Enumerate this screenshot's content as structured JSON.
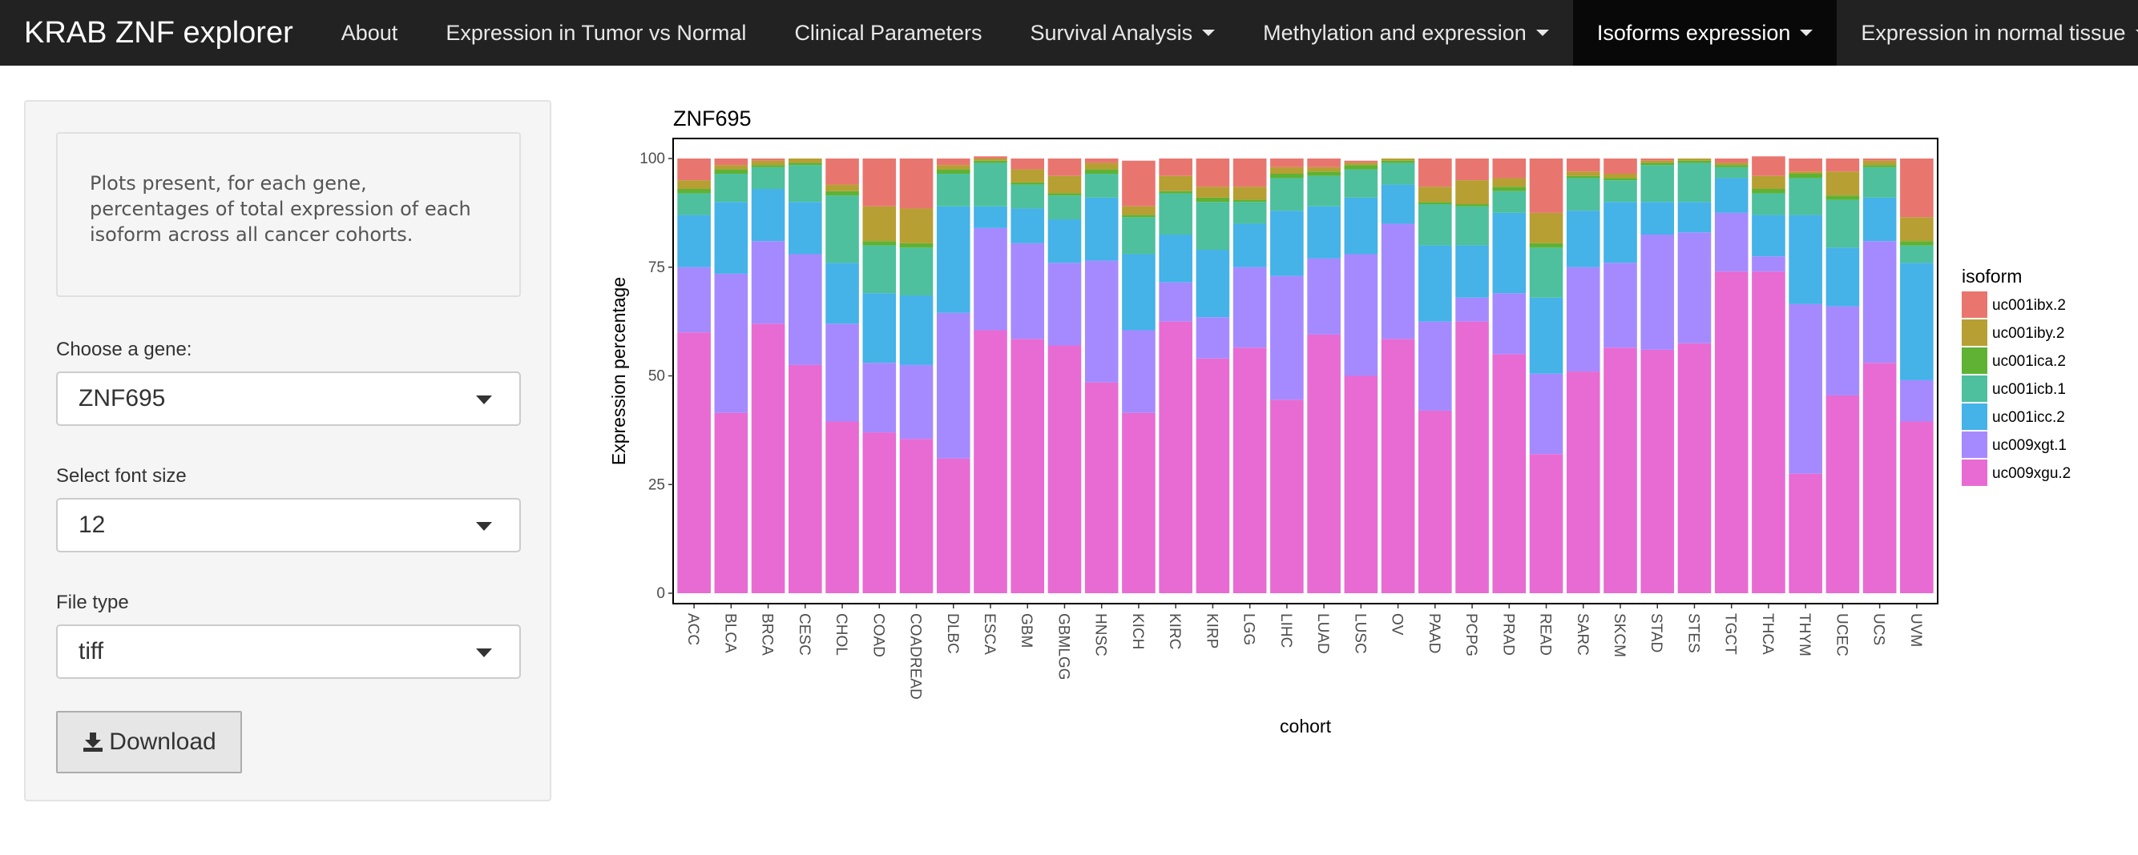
{
  "navbar": {
    "brand": "KRAB ZNF explorer",
    "items": [
      {
        "label": "About",
        "dropdown": false,
        "active": false
      },
      {
        "label": "Expression in Tumor vs Normal",
        "dropdown": false,
        "active": false
      },
      {
        "label": "Clinical Parameters",
        "dropdown": false,
        "active": false
      },
      {
        "label": "Survival Analysis",
        "dropdown": true,
        "active": false
      },
      {
        "label": "Methylation and expression",
        "dropdown": true,
        "active": false
      },
      {
        "label": "Isoforms expression",
        "dropdown": true,
        "active": true
      },
      {
        "label": "Expression in normal tissue",
        "dropdown": true,
        "active": false
      }
    ]
  },
  "sidebar": {
    "description": "Plots present, for each gene, percentages of total expression of each isoform across all cancer cohorts.",
    "gene_label": "Choose a gene:",
    "gene_value": "ZNF695",
    "font_label": "Select font size",
    "font_value": "12",
    "filetype_label": "File type",
    "filetype_value": "tiff",
    "download_label": "Download",
    "download_icon": "download-icon"
  },
  "chart_data": {
    "type": "bar",
    "stacked": true,
    "title": "ZNF695",
    "xlabel": "cohort",
    "ylabel": "Expression percentage",
    "ylim": [
      0,
      100
    ],
    "yticks": [
      0,
      25,
      50,
      75,
      100
    ],
    "legend_title": "isoform",
    "legend_position": "right",
    "grid": false,
    "categories": [
      "ACC",
      "BLCA",
      "BRCA",
      "CESC",
      "CHOL",
      "COAD",
      "COADREAD",
      "DLBC",
      "ESCA",
      "GBM",
      "GBMLGG",
      "HNSC",
      "KICH",
      "KIRC",
      "KIRP",
      "LGG",
      "LIHC",
      "LUAD",
      "LUSC",
      "OV",
      "PAAD",
      "PCPG",
      "PRAD",
      "READ",
      "SARC",
      "SKCM",
      "STAD",
      "STES",
      "TGCT",
      "THCA",
      "THYM",
      "UCEC",
      "UCS",
      "UVM"
    ],
    "series": [
      {
        "name": "uc009xgu.2",
        "color": "#E76BD3",
        "values": [
          60,
          41.5,
          62,
          52.5,
          39.5,
          37,
          35.5,
          31,
          60.5,
          58.5,
          57,
          48.5,
          41.5,
          62.5,
          54,
          56.5,
          44.5,
          59.5,
          50,
          58.5,
          42,
          62.5,
          55,
          32,
          51,
          56.5,
          56,
          57.5,
          74,
          74,
          27.5,
          45.5,
          53,
          39.5
        ]
      },
      {
        "name": "uc009xgt.1",
        "color": "#A58AFF",
        "values": [
          15,
          32,
          19,
          25.5,
          22.5,
          16,
          17,
          33.5,
          23.5,
          22,
          19,
          28,
          19,
          9,
          9.5,
          18.5,
          28.5,
          17.5,
          28,
          26.5,
          20.5,
          5.5,
          14,
          18.5,
          24,
          19.5,
          26.5,
          25.5,
          13.5,
          3.5,
          39,
          20.5,
          28,
          9.5
        ]
      },
      {
        "name": "uc001icc.2",
        "color": "#45B2E8",
        "values": [
          12,
          16.5,
          12,
          12,
          14,
          16,
          16,
          24.5,
          5,
          8,
          10,
          14.5,
          17.5,
          11,
          15.5,
          10,
          15,
          12,
          13,
          9,
          17.5,
          12,
          18.5,
          17.5,
          13,
          14,
          7.5,
          7,
          8,
          9.5,
          20.5,
          13.5,
          10,
          27
        ]
      },
      {
        "name": "uc001icb.1",
        "color": "#4EC09D",
        "values": [
          5,
          6.5,
          5,
          8.5,
          15.5,
          11,
          11,
          7.5,
          10,
          5.5,
          5.5,
          5.5,
          8.5,
          9.5,
          11,
          5,
          7.5,
          7,
          6.5,
          5,
          9.5,
          9,
          5,
          11.5,
          7.5,
          5,
          8.5,
          9,
          2.5,
          5,
          8.5,
          11,
          7,
          4
        ]
      },
      {
        "name": "uc001ica.2",
        "color": "#5FB233",
        "values": [
          1,
          1,
          0.5,
          0.5,
          1,
          1,
          1,
          1,
          0.5,
          0.5,
          0.5,
          1,
          0.5,
          0.5,
          1,
          0.5,
          1,
          1,
          1,
          0.5,
          0.5,
          0.5,
          1,
          1,
          0.5,
          0.5,
          0.5,
          0.5,
          0.5,
          1,
          1,
          1,
          0.5,
          1
        ]
      },
      {
        "name": "uc001iby.2",
        "color": "#B79F33",
        "values": [
          2,
          1,
          1,
          1,
          1.5,
          8,
          8,
          1,
          0.5,
          3,
          4,
          1.5,
          2,
          3.5,
          2.5,
          3,
          1.5,
          1,
          0.5,
          0.5,
          3.5,
          5.5,
          2,
          7,
          1,
          1,
          0.5,
          0.5,
          0.5,
          3,
          0.5,
          5.5,
          1,
          5.5
        ]
      },
      {
        "name": "uc001ibx.2",
        "color": "#E8766F",
        "values": [
          5,
          1.5,
          0.5,
          0,
          6,
          11,
          11.5,
          1.5,
          0.5,
          2.5,
          4,
          1,
          10.5,
          4,
          6.5,
          6.5,
          2,
          2,
          0.5,
          0,
          6.5,
          5,
          4.5,
          12.5,
          3,
          3.5,
          0.5,
          0,
          1,
          4.5,
          3,
          3,
          0.5,
          13.5
        ]
      }
    ]
  }
}
